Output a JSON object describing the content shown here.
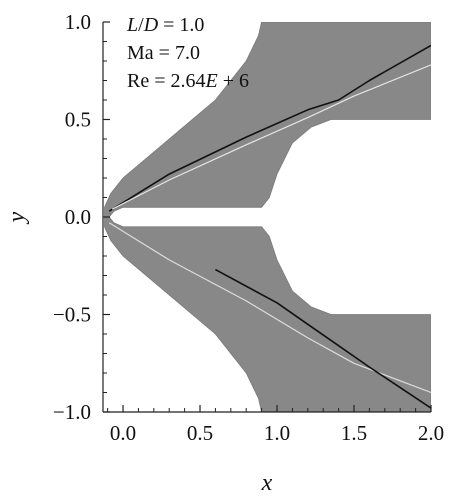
{
  "chart_data": {
    "type": "heatmap",
    "title": "",
    "xlabel": "x",
    "ylabel": "y",
    "xlim": [
      -0.13,
      2.0
    ],
    "ylim": [
      -1.0,
      1.0
    ],
    "x_ticks": [
      {
        "value": 0.0,
        "label": "0.0"
      },
      {
        "value": 0.5,
        "label": "0.5"
      },
      {
        "value": 1.0,
        "label": "1.0"
      },
      {
        "value": 1.5,
        "label": "1.5"
      },
      {
        "value": 2.0,
        "label": "2.0"
      }
    ],
    "y_ticks": [
      {
        "value": 1.0,
        "label": "1.0"
      },
      {
        "value": 0.5,
        "label": "0.5"
      },
      {
        "value": 0.0,
        "label": "0.0"
      },
      {
        "value": -0.5,
        "label": "−0.5"
      },
      {
        "value": -1.0,
        "label": "−1.0"
      }
    ],
    "annotations": [
      {
        "line": 1,
        "parts": [
          {
            "text": "L",
            "italic": true
          },
          {
            "text": "/",
            "italic": false
          },
          {
            "text": "D",
            "italic": true
          },
          {
            "text": " = 1.0",
            "italic": false
          }
        ]
      },
      {
        "line": 2,
        "parts": [
          {
            "text": "Ma = 7.0",
            "italic": false
          }
        ]
      },
      {
        "line": 3,
        "parts": [
          {
            "text": "Re = 2.64",
            "italic": false
          },
          {
            "text": "E",
            "italic": true
          },
          {
            "text": " + 6",
            "italic": false
          }
        ]
      }
    ],
    "domain": {
      "upper_outer": [
        [
          -0.12,
          0.05
        ],
        [
          -0.08,
          0.12
        ],
        [
          0.0,
          0.2
        ],
        [
          0.3,
          0.4
        ],
        [
          0.6,
          0.6
        ],
        [
          0.8,
          0.8
        ],
        [
          0.88,
          0.93
        ],
        [
          0.9,
          1.0
        ],
        [
          2.0,
          1.0
        ]
      ],
      "upper_inner": [
        [
          2.0,
          0.5
        ],
        [
          1.35,
          0.5
        ],
        [
          1.22,
          0.46
        ],
        [
          1.1,
          0.38
        ],
        [
          1.0,
          0.22
        ],
        [
          0.95,
          0.1
        ],
        [
          0.9,
          0.05
        ],
        [
          0.0,
          0.05
        ],
        [
          -0.06,
          0.03
        ],
        [
          -0.09,
          0.0
        ]
      ],
      "lower_inner": [
        [
          -0.09,
          0.0
        ],
        [
          -0.06,
          -0.03
        ],
        [
          0.0,
          -0.05
        ],
        [
          0.9,
          -0.05
        ],
        [
          0.95,
          -0.1
        ],
        [
          1.0,
          -0.22
        ],
        [
          1.1,
          -0.38
        ],
        [
          1.22,
          -0.46
        ],
        [
          1.35,
          -0.5
        ],
        [
          2.0,
          -0.5
        ]
      ],
      "lower_outer": [
        [
          2.0,
          -1.0
        ],
        [
          0.9,
          -1.0
        ],
        [
          0.88,
          -0.93
        ],
        [
          0.8,
          -0.8
        ],
        [
          0.6,
          -0.6
        ],
        [
          0.3,
          -0.4
        ],
        [
          0.0,
          -0.2
        ],
        [
          -0.08,
          -0.12
        ],
        [
          -0.12,
          -0.05
        ]
      ]
    },
    "shocks": [
      {
        "name": "",
        "color": "#111111",
        "width": 1.6,
        "points": [
          [
            -0.09,
            0.03
          ],
          [
            0.3,
            0.22
          ],
          [
            0.8,
            0.41
          ],
          [
            1.2,
            0.55
          ],
          [
            1.4,
            0.6
          ],
          [
            1.6,
            0.7
          ],
          [
            2.0,
            0.88
          ]
        ]
      },
      {
        "name": "",
        "color": "#e6e6e6",
        "width": 1.2,
        "points": [
          [
            -0.07,
            0.04
          ],
          [
            0.3,
            0.19
          ],
          [
            0.8,
            0.37
          ],
          [
            1.2,
            0.51
          ],
          [
            1.5,
            0.62
          ],
          [
            2.0,
            0.78
          ]
        ]
      },
      {
        "name": "",
        "color": "#dddddd",
        "width": 1.2,
        "points": [
          [
            -0.09,
            -0.03
          ],
          [
            0.3,
            -0.22
          ],
          [
            0.8,
            -0.43
          ],
          [
            1.2,
            -0.62
          ],
          [
            1.5,
            -0.75
          ],
          [
            2.0,
            -0.9
          ]
        ]
      },
      {
        "name": "",
        "color": "#111111",
        "width": 1.6,
        "points": [
          [
            0.6,
            -0.27
          ],
          [
            1.0,
            -0.44
          ],
          [
            1.2,
            -0.55
          ],
          [
            1.4,
            -0.66
          ],
          [
            1.6,
            -0.77
          ],
          [
            2.0,
            -0.98
          ]
        ]
      }
    ],
    "colors": {
      "field": "#888888",
      "background": "#ffffff",
      "axis": "#222222"
    },
    "grid": false,
    "legend": "none"
  }
}
